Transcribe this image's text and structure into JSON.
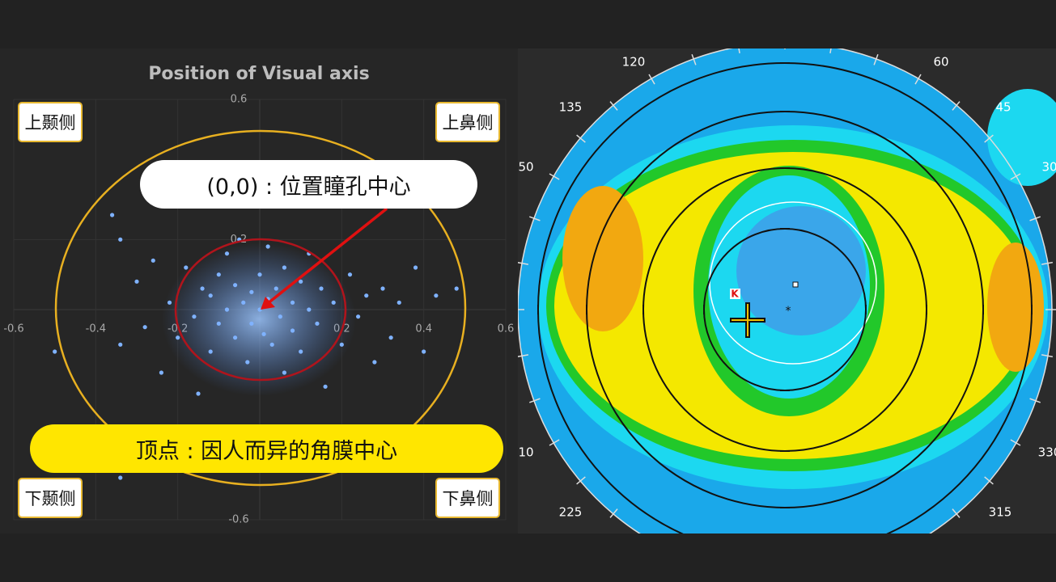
{
  "chart_data": {
    "type": "scatter",
    "title": "Position of Visual axis",
    "x": [
      -0.5,
      -0.36,
      -0.34,
      -0.3,
      -0.28,
      -0.26,
      -0.24,
      -0.22,
      -0.2,
      -0.18,
      -0.16,
      -0.15,
      -0.14,
      -0.12,
      -0.12,
      -0.1,
      -0.1,
      -0.08,
      -0.08,
      -0.06,
      -0.06,
      -0.05,
      -0.04,
      -0.03,
      -0.02,
      -0.02,
      0,
      0,
      0.01,
      0.02,
      0.02,
      0.03,
      0.04,
      0.05,
      0.06,
      0.06,
      0.08,
      0.08,
      0.1,
      0.1,
      0.12,
      0.12,
      0.14,
      0.15,
      0.16,
      0.18,
      0.2,
      0.22,
      0.24,
      0.26,
      0.28,
      0.3,
      0.32,
      0.34,
      0.38,
      0.4,
      0.43,
      0.48,
      -0.34,
      -0.34
    ],
    "values": [
      -0.12,
      0.27,
      -0.1,
      0.08,
      -0.05,
      0.14,
      -0.18,
      0.02,
      -0.08,
      0.12,
      -0.02,
      -0.24,
      0.06,
      0.04,
      -0.12,
      0.1,
      -0.04,
      0.16,
      0.0,
      -0.08,
      0.07,
      0.2,
      0.02,
      -0.15,
      0.05,
      -0.04,
      0.1,
      0.0,
      -0.07,
      0.03,
      0.18,
      -0.1,
      0.06,
      -0.02,
      0.12,
      -0.18,
      0.02,
      -0.06,
      0.08,
      -0.12,
      0.0,
      0.16,
      -0.04,
      0.06,
      -0.22,
      0.02,
      -0.1,
      0.1,
      -0.02,
      0.04,
      -0.15,
      0.06,
      -0.08,
      0.02,
      0.12,
      -0.12,
      0.04,
      0.06,
      -0.48,
      0.2
    ],
    "color": "#7fb2ff",
    "xlim": [
      -0.6,
      0.6
    ],
    "ylim": [
      -0.6,
      0.6
    ],
    "xticks": [
      -0.6,
      -0.4,
      -0.2,
      0.2,
      0.4,
      0.6
    ],
    "yticks": [
      0.6,
      0.2,
      -0.6
    ],
    "grid": true
  },
  "annotations": {
    "center_note": "(0,0) : 位置瞳孔中心",
    "apex_note": "顶点 : 因人而异的角膜中心",
    "upper_temporal": "上颞侧",
    "upper_nasal": "上鼻侧",
    "lower_temporal": "下颞侧",
    "lower_nasal": "下鼻侧"
  },
  "topography": {
    "labels": [
      "120",
      "60",
      "135",
      "45",
      "50",
      "30",
      "10",
      "330",
      "225",
      "315"
    ],
    "marker": "K"
  }
}
